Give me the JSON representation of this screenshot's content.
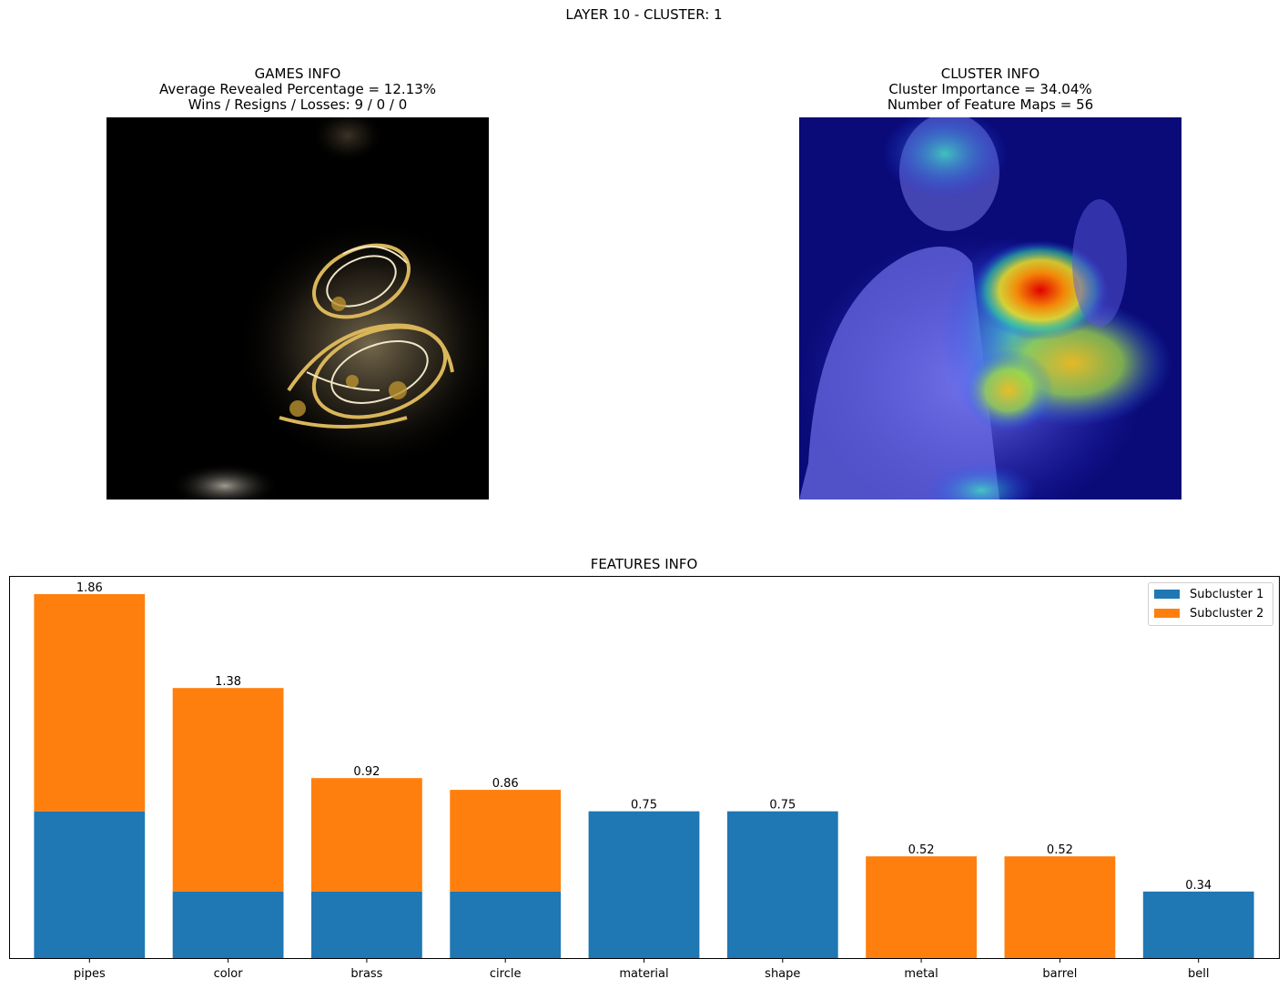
{
  "suptitle": "LAYER 10 - CLUSTER: 1",
  "games_info": {
    "title": "GAMES INFO",
    "line1": "Average Revealed Percentage = 12.13%",
    "line2": "Wins / Resigns / Losses: 9 / 0 / 0"
  },
  "cluster_info": {
    "title": "CLUSTER INFO",
    "line1": "Cluster Importance = 34.04%",
    "line2": "Number of Feature Maps = 56"
  },
  "colors": {
    "subcluster1": "#1f77b4",
    "subcluster2": "#ff7f0e"
  },
  "chart_data": {
    "type": "bar",
    "stacked": true,
    "title": "FEATURES INFO",
    "categories": [
      "pipes",
      "color",
      "brass",
      "circle",
      "material",
      "shape",
      "metal",
      "barrel",
      "bell"
    ],
    "series": [
      {
        "name": "Subcluster 1",
        "values": [
          0.75,
          0.34,
          0.34,
          0.34,
          0.75,
          0.75,
          0.0,
          0.0,
          0.34
        ]
      },
      {
        "name": "Subcluster 2",
        "values": [
          1.11,
          1.04,
          0.58,
          0.52,
          0.0,
          0.0,
          0.52,
          0.52,
          0.0
        ]
      }
    ],
    "totals": [
      "1.86",
      "1.38",
      "0.92",
      "0.86",
      "0.75",
      "0.75",
      "0.52",
      "0.52",
      "0.34"
    ],
    "ylim": [
      0,
      1.953
    ],
    "legend": "top-right",
    "yaxis_visible": false,
    "grid": false
  }
}
